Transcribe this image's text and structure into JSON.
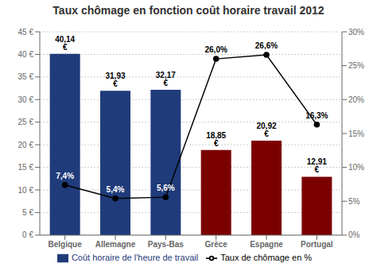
{
  "chart_data": {
    "type": "bar",
    "title": "Taux chômage en fonction coût horaire travail 2012",
    "categories": [
      "Belgique",
      "Allemagne",
      "Pays-Bas",
      "Grèce",
      "Espagne",
      "Portugal"
    ],
    "series": [
      {
        "name": "Coût horaire de l'heure de travail",
        "type": "bar",
        "colors": [
          "#1F3B7A",
          "#1F3B7A",
          "#1F3B7A",
          "#7B0000",
          "#7B0000",
          "#7B0000"
        ],
        "values": [
          40.14,
          31.93,
          32.17,
          18.85,
          20.92,
          12.91
        ],
        "value_labels": [
          "40,14 €",
          "31,93 €",
          "32,17 €",
          "18,85 €",
          "20,92 €",
          "12,91 €"
        ]
      },
      {
        "name": "Taux de chômage en %",
        "type": "line",
        "axis": "y2",
        "color": "#000000",
        "marker": "circle",
        "values": [
          7.4,
          5.4,
          5.6,
          26.0,
          26.6,
          16.3
        ],
        "value_labels": [
          "7,4%",
          "5,4%",
          "5,6%",
          "26,0%",
          "26,6%",
          "16,3%"
        ]
      }
    ],
    "ylim": [
      0,
      45
    ],
    "yticks": [
      {
        "value": 0,
        "label": "0 €"
      },
      {
        "value": 5,
        "label": "5 €"
      },
      {
        "value": 10,
        "label": "10 €"
      },
      {
        "value": 15,
        "label": "15 €"
      },
      {
        "value": 20,
        "label": "20 €"
      },
      {
        "value": 25,
        "label": "25 €"
      },
      {
        "value": 30,
        "label": "30 €"
      },
      {
        "value": 35,
        "label": "35 €"
      },
      {
        "value": 40,
        "label": "40 €"
      },
      {
        "value": 45,
        "label": "45 €"
      }
    ],
    "y2lim": [
      0,
      30
    ],
    "y2ticks": [
      {
        "value": 0,
        "label": "0%"
      },
      {
        "value": 5,
        "label": "5%"
      },
      {
        "value": 10,
        "label": "10%"
      },
      {
        "value": 15,
        "label": "15%"
      },
      {
        "value": 20,
        "label": "20%"
      },
      {
        "value": 25,
        "label": "25%"
      },
      {
        "value": 30,
        "label": "30%"
      }
    ],
    "grid": true,
    "legend": "bottom",
    "data_labels": true
  }
}
